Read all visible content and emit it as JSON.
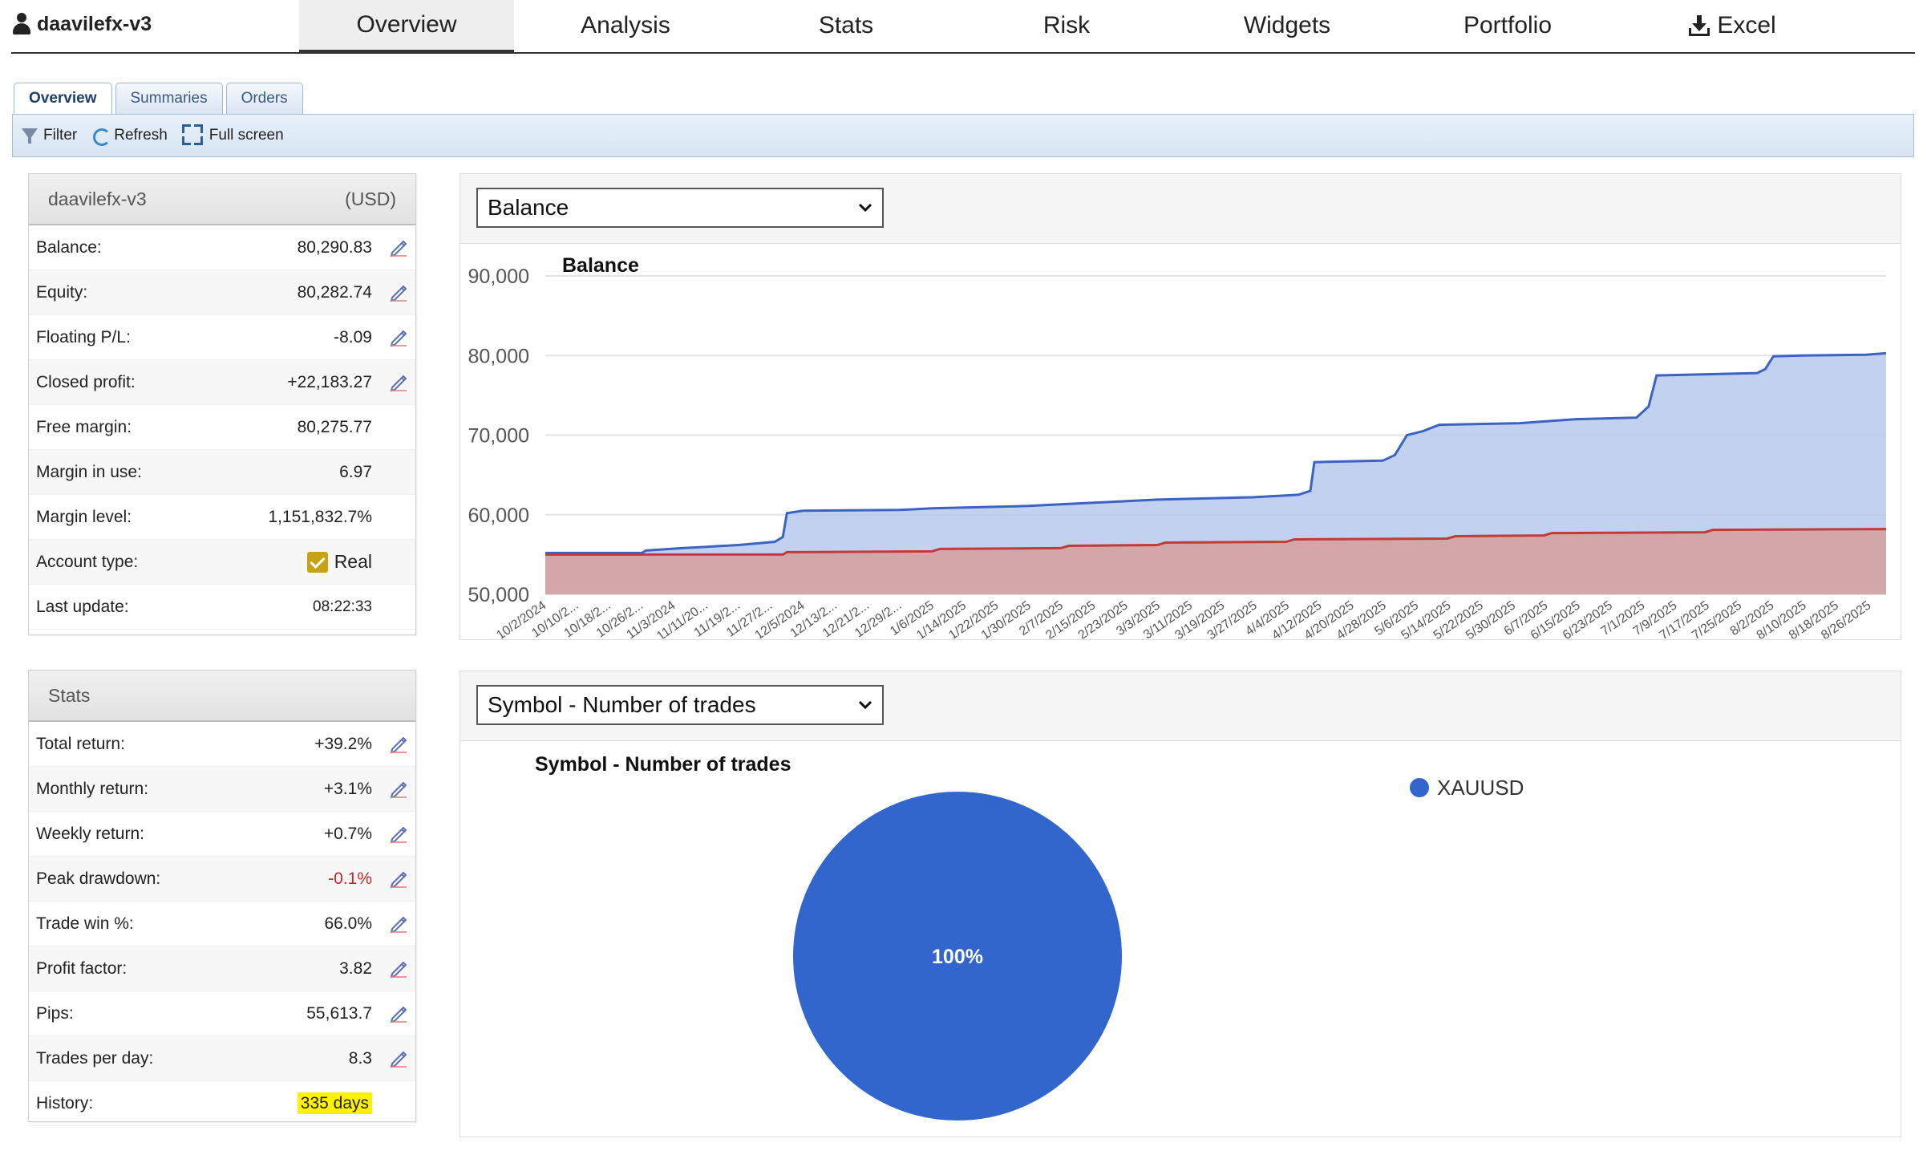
{
  "nav": {
    "account_name": "daavilefx-v3",
    "tabs": [
      "Overview",
      "Analysis",
      "Stats",
      "Risk",
      "Widgets",
      "Portfolio"
    ],
    "excel_label": "Excel",
    "active_tab": "Overview"
  },
  "subtabs": [
    "Overview",
    "Summaries",
    "Orders"
  ],
  "toolbar": {
    "filter": "Filter",
    "refresh": "Refresh",
    "fullscreen": "Full screen"
  },
  "account_panel": {
    "name": "daavilefx-v3",
    "currency": "(USD)",
    "rows": [
      {
        "label": "Balance:",
        "value": "80,290.83",
        "editable": true
      },
      {
        "label": "Equity:",
        "value": "80,282.74",
        "editable": true
      },
      {
        "label": "Floating P/L:",
        "value": "-8.09",
        "editable": true
      },
      {
        "label": "Closed profit:",
        "value": "+22,183.27",
        "editable": true
      },
      {
        "label": "Free margin:",
        "value": "80,275.77",
        "editable": false
      },
      {
        "label": "Margin in use:",
        "value": "6.97",
        "editable": false
      },
      {
        "label": "Margin level:",
        "value": "1,151,832.7%",
        "editable": false
      }
    ],
    "account_type_label": "Account type:",
    "account_type_value": "Real",
    "last_update_label": "Last update:",
    "last_update_value": "08:22:33"
  },
  "stats_panel": {
    "title": "Stats",
    "rows": [
      {
        "label": "Total return:",
        "value": "+39.2%"
      },
      {
        "label": "Monthly return:",
        "value": "+3.1%"
      },
      {
        "label": "Weekly return:",
        "value": "+0.7%"
      },
      {
        "label": "Peak drawdown:",
        "value": "-0.1%",
        "negative": true
      },
      {
        "label": "Trade win %:",
        "value": "66.0%"
      },
      {
        "label": "Profit factor:",
        "value": "3.82"
      },
      {
        "label": "Pips:",
        "value": "55,613.7"
      },
      {
        "label": "Trades per day:",
        "value": "8.3"
      }
    ],
    "history_label": "History:",
    "history_value": "335 days"
  },
  "balance_select": "Balance",
  "pie_select": "Symbol - Number of trades",
  "colors": {
    "balance_line": "#3b63c4",
    "balance_fill": "#b9c9ee",
    "deposit_line": "#c23b37",
    "deposit_fill": "#d4a3a4",
    "pie": "#3366cc",
    "edit_icon": "#5b6fb5"
  },
  "chart_data": [
    {
      "type": "area",
      "title": "Balance",
      "ylim": [
        50000,
        90000
      ],
      "yticks": [
        "50,000",
        "60,000",
        "70,000",
        "80,000",
        "90,000"
      ],
      "x_tick_labels": [
        "10/2/2024",
        "10/10/2...",
        "10/18/2...",
        "10/26/2...",
        "11/3/2024",
        "11/11/20...",
        "11/19/2...",
        "11/27/2...",
        "12/5/2024",
        "12/13/2...",
        "12/21/2...",
        "12/29/2...",
        "1/6/2025",
        "1/14/2025",
        "1/22/2025",
        "1/30/2025",
        "2/7/2025",
        "2/15/2025",
        "2/23/2025",
        "3/3/2025",
        "3/11/2025",
        "3/19/2025",
        "3/27/2025",
        "4/4/2025",
        "4/12/2025",
        "4/20/2025",
        "4/28/2025",
        "5/6/2025",
        "5/14/2025",
        "5/22/2025",
        "5/30/2025",
        "6/7/2025",
        "6/15/2025",
        "6/23/2025",
        "7/1/2025",
        "7/9/2025",
        "7/17/2025",
        "7/25/2025",
        "8/2/2025",
        "8/10/2025",
        "8/18/2025",
        "8/26/2025"
      ],
      "series": [
        {
          "points": [
            [
              "10/2/2024",
              55200
            ],
            [
              "10/26/2024",
              55200
            ],
            [
              "10/27/2024",
              55500
            ],
            [
              "11/5/2024",
              55800
            ],
            [
              "11/19/2024",
              56200
            ],
            [
              "11/28/2024",
              56600
            ],
            [
              "11/30/2024",
              57200
            ],
            [
              "12/1/2024",
              60200
            ],
            [
              "12/5/2024",
              60500
            ],
            [
              "12/29/2024",
              60600
            ],
            [
              "1/6/2025",
              60800
            ],
            [
              "1/30/2025",
              61100
            ],
            [
              "2/7/2025",
              61300
            ],
            [
              "2/23/2025",
              61700
            ],
            [
              "3/3/2025",
              61900
            ],
            [
              "3/27/2025",
              62200
            ],
            [
              "4/7/2025",
              62500
            ],
            [
              "4/10/2025",
              63000
            ],
            [
              "4/11/2025",
              66600
            ],
            [
              "4/28/2025",
              66800
            ],
            [
              "5/1/2025",
              67500
            ],
            [
              "5/4/2025",
              70000
            ],
            [
              "5/8/2025",
              70500
            ],
            [
              "5/12/2025",
              71300
            ],
            [
              "6/1/2025",
              71500
            ],
            [
              "6/15/2025",
              72000
            ],
            [
              "6/30/2025",
              72200
            ],
            [
              "7/3/2025",
              73600
            ],
            [
              "7/5/2025",
              77500
            ],
            [
              "7/30/2025",
              77800
            ],
            [
              "8/1/2025",
              78300
            ],
            [
              "8/3/2025",
              79900
            ],
            [
              "8/10/2025",
              80000
            ],
            [
              "8/26/2025",
              80100
            ],
            [
              "8/31/2025",
              80290.83
            ]
          ]
        },
        {
          "points": [
            [
              "10/2/2024",
              55000
            ],
            [
              "11/30/2024",
              55000
            ],
            [
              "12/1/2024",
              55300
            ],
            [
              "1/6/2025",
              55400
            ],
            [
              "1/8/2025",
              55700
            ],
            [
              "2/7/2025",
              55800
            ],
            [
              "2/9/2025",
              56100
            ],
            [
              "3/3/2025",
              56200
            ],
            [
              "3/5/2025",
              56500
            ],
            [
              "4/4/2025",
              56600
            ],
            [
              "4/6/2025",
              56900
            ],
            [
              "5/14/2025",
              57000
            ],
            [
              "5/16/2025",
              57300
            ],
            [
              "6/7/2025",
              57400
            ],
            [
              "6/9/2025",
              57700
            ],
            [
              "7/17/2025",
              57800
            ],
            [
              "7/19/2025",
              58100
            ],
            [
              "8/31/2025",
              58200
            ]
          ]
        }
      ]
    },
    {
      "type": "pie",
      "title": "Symbol - Number of trades",
      "categories": [
        "XAUUSD"
      ],
      "values": [
        100
      ],
      "data_labels": [
        "100%"
      ],
      "legend": "top-right"
    }
  ]
}
